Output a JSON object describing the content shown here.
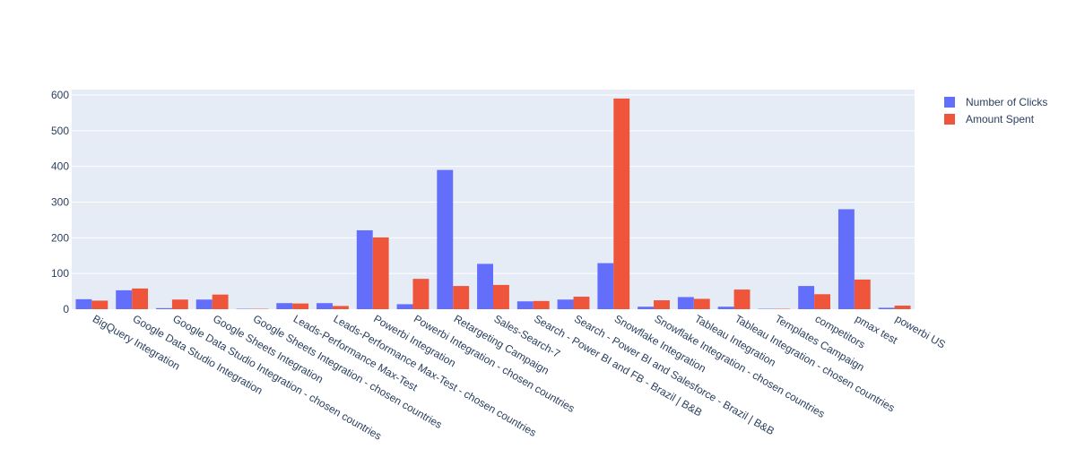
{
  "chart_data": {
    "type": "bar",
    "title": "",
    "xlabel": "",
    "ylabel": "",
    "ylim": [
      0,
      615
    ],
    "yticks": [
      0,
      100,
      200,
      300,
      400,
      500,
      600
    ],
    "grid": true,
    "legend_position": "top-right",
    "categories": [
      "BigQuery Integration",
      "Google Data Studio Integration",
      "Google Data Studio Integration - chosen countries",
      "Google Sheets Integration",
      "Google Sheets Integration - chosen countries",
      "Leads-Performance Max-Test",
      "Leads-Performance Max-Test - chosen countries",
      "Powerbi Integration",
      "Powerbi Integration - chosen countries",
      "Retargeting Campaign",
      "Sales-Search-7",
      "Search - Power BI and FB - Brazil | B&B",
      "Search - Power BI and Salesforce - Brazil | B&B",
      "Snowflake Integration",
      "Snowflake Integration - chosen countries",
      "Tableau Integration",
      "Tableau Integration - chosen countries",
      "Templates Campaign",
      "competitors",
      "pmax test",
      "powerbi US"
    ],
    "series": [
      {
        "name": "Number of Clicks",
        "color": "#636efa",
        "values": [
          28,
          53,
          3,
          27,
          1,
          17,
          17,
          221,
          14,
          390,
          127,
          22,
          27,
          129,
          7,
          34,
          7,
          1,
          65,
          280,
          4
        ]
      },
      {
        "name": "Amount Spent",
        "color": "#ef553b",
        "values": [
          24,
          58,
          27,
          41,
          1,
          16,
          9,
          201,
          85,
          65,
          68,
          23,
          35,
          590,
          25,
          29,
          55,
          1,
          42,
          83,
          10
        ]
      }
    ]
  },
  "colors": {
    "plot_background": "#e5ecf6",
    "grid": "#ffffff",
    "text": "#2a3f5f"
  }
}
